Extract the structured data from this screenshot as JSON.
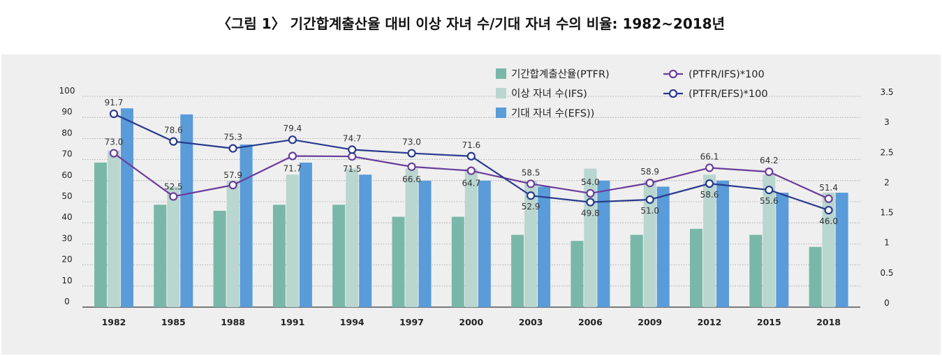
{
  "title": "〈그림 1〉 기간합계출산율 대비 이상 자녀 수/기대 자녀 수의 비율: 1982~2018년",
  "chart_data": {
    "type": "bar",
    "categories": [
      "1982",
      "1985",
      "1988",
      "1991",
      "1994",
      "1997",
      "2000",
      "2003",
      "2006",
      "2009",
      "2012",
      "2015",
      "2018"
    ],
    "y_left_ticks": [
      "0",
      "10",
      "20",
      "30",
      "40",
      "50",
      "60",
      "70",
      "80",
      "90",
      "100"
    ],
    "y_right_ticks": [
      "0",
      "0.5",
      "1",
      "1.5",
      "2",
      "2.5",
      "3",
      "3.5"
    ],
    "ylim_left": [
      0,
      100
    ],
    "ylim_right": [
      0,
      3.5
    ],
    "grid": true,
    "legend_position": "top-right",
    "bar_series": [
      {
        "name": "기간합계출산율(PTFR)",
        "color": "#79b8a8",
        "values": [
          2.4,
          1.7,
          1.6,
          1.7,
          1.7,
          1.5,
          1.5,
          1.2,
          1.1,
          1.2,
          1.3,
          1.2,
          1.0
        ]
      },
      {
        "name": "이상 자녀 수(IFS)",
        "color": "#b9d6cf",
        "values": [
          2.6,
          2.0,
          2.1,
          2.2,
          2.3,
          2.3,
          2.3,
          2.1,
          2.3,
          2.1,
          2.2,
          2.2,
          1.9
        ]
      },
      {
        "name": "기대 자녀 수(EFS))",
        "color": "#5a9bd9",
        "values": [
          3.3,
          3.2,
          2.7,
          2.4,
          2.2,
          2.1,
          2.1,
          2.0,
          2.1,
          2.0,
          2.1,
          1.9,
          1.9
        ]
      }
    ],
    "line_series": [
      {
        "name": "(PTFR/IFS)*100",
        "color": "#6a3d9a",
        "values": [
          73.0,
          52.5,
          57.9,
          71.7,
          71.5,
          66.6,
          64.7,
          58.5,
          54.0,
          58.9,
          66.1,
          64.2,
          51.4
        ],
        "labels": [
          "73.0",
          "52.5",
          "57.9",
          "71.7",
          "71.5",
          "66.6",
          "64.7",
          "58.5",
          "54.0",
          "58.9",
          "66.1",
          "64.2",
          "51.4"
        ]
      },
      {
        "name": "(PTFR/EFS)*100",
        "color": "#283a8c",
        "values": [
          91.7,
          78.6,
          75.3,
          79.4,
          74.7,
          73.0,
          71.6,
          52.9,
          49.8,
          51.0,
          58.6,
          55.6,
          46.0
        ],
        "labels": [
          "91.7",
          "78.6",
          "75.3",
          "79.4",
          "74.7",
          "73.0",
          "71.6",
          "52.9",
          "49.8",
          "51.0",
          "58.6",
          "55.6",
          "46.0"
        ]
      }
    ]
  }
}
